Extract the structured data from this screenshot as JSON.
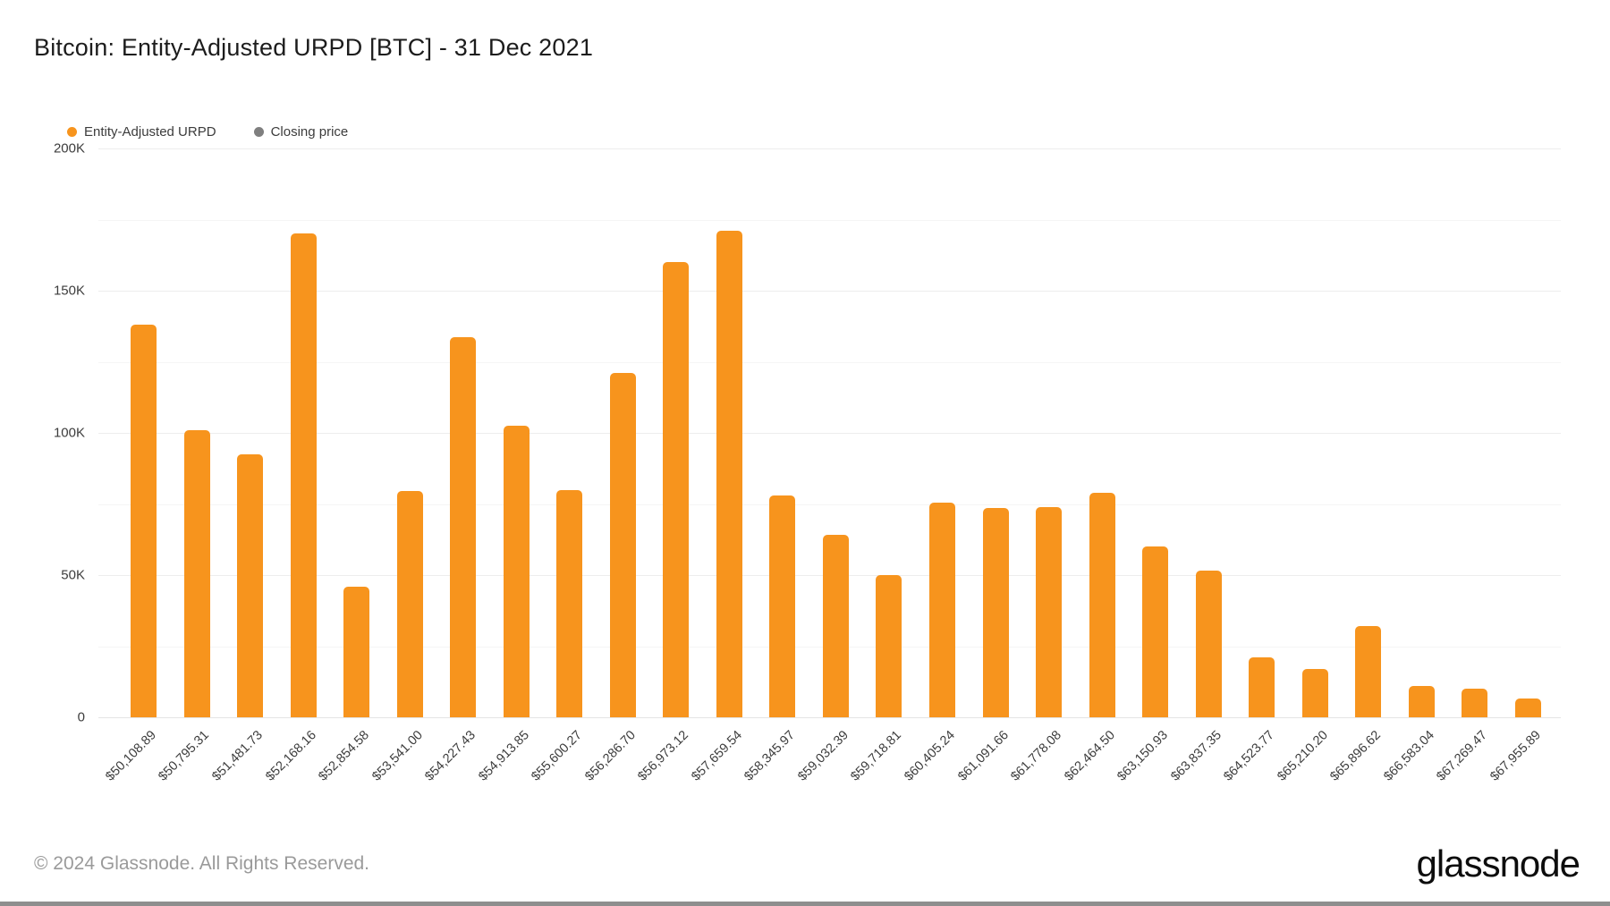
{
  "title": "Bitcoin: Entity-Adjusted URPD [BTC] - 31 Dec 2021",
  "legend": {
    "items": [
      {
        "label": "Entity-Adjusted URPD",
        "color": "#f7941d"
      },
      {
        "label": "Closing price",
        "color": "#7f7f7f"
      }
    ]
  },
  "footer": {
    "copyright": "© 2024 Glassnode. All Rights Reserved.",
    "brand": "glassnode"
  },
  "colors": {
    "bar": "#f7941d",
    "closing_dot": "#7f7f7f",
    "grid_major": "#ededed",
    "grid_minor": "#f5f5f5",
    "axis_line": "#e4e4e4",
    "text_primary": "#1c1c1c",
    "text_axis": "#3c3c3c",
    "text_footer": "#9a9a9a",
    "bottom_strip": "#8e8e8e"
  },
  "chart_data": {
    "type": "bar",
    "title": "Bitcoin: Entity-Adjusted URPD [BTC] - 31 Dec 2021",
    "series_name": "Entity-Adjusted URPD",
    "legend_position": "top-left",
    "grid": "horizontal",
    "ylim": [
      0,
      200000
    ],
    "y_minor_step": 25000,
    "y_ticks": [
      {
        "value": 200000,
        "label": "200K"
      },
      {
        "value": 150000,
        "label": "150K"
      },
      {
        "value": 100000,
        "label": "100K"
      },
      {
        "value": 50000,
        "label": "50K"
      },
      {
        "value": 0,
        "label": "0"
      }
    ],
    "categories": [
      "$50,108.89",
      "$50,795.31",
      "$51,481.73",
      "$52,168.16",
      "$52,854.58",
      "$53,541.00",
      "$54,227.43",
      "$54,913.85",
      "$55,600.27",
      "$56,286.70",
      "$56,973.12",
      "$57,659.54",
      "$58,345.97",
      "$59,032.39",
      "$59,718.81",
      "$60,405.24",
      "$61,091.66",
      "$61,778.08",
      "$62,464.50",
      "$63,150.93",
      "$63,837.35",
      "$64,523.77",
      "$65,210.20",
      "$65,896.62",
      "$66,583.04",
      "$67,269.47",
      "$67,955.89"
    ],
    "values": [
      138000,
      101000,
      92500,
      170000,
      46000,
      79500,
      133500,
      102500,
      80000,
      121000,
      160000,
      171000,
      78000,
      64000,
      50000,
      75500,
      73500,
      74000,
      79000,
      60000,
      51500,
      21000,
      17000,
      32000,
      11000,
      10000,
      6500
    ]
  }
}
